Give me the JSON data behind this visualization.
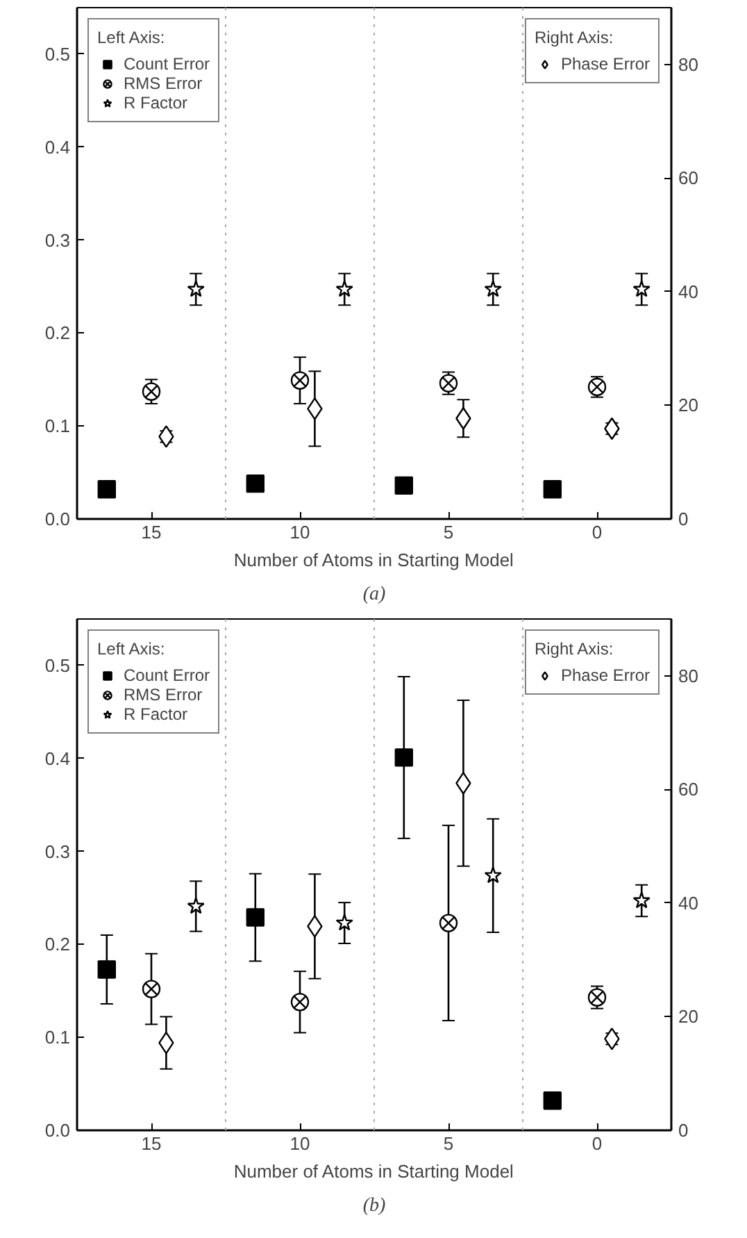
{
  "chart_data": [
    {
      "type": "scatter",
      "title": "(a)",
      "xlabel": "Number of Atoms in Starting Model",
      "xlim": [
        17.5,
        -2.5
      ],
      "xticks": [
        15,
        10,
        5,
        0
      ],
      "ylim": [
        0,
        0.55
      ],
      "yticks": [
        {
          "value": 0,
          "label": "0.0"
        },
        0.1,
        0.2,
        0.3,
        0.4,
        0.5
      ],
      "y2lim": [
        0,
        90
      ],
      "y2ticks": [
        0,
        20,
        40,
        60,
        80
      ],
      "legend": [
        "top left",
        "top right"
      ],
      "legend_title": [
        "Left Axis:",
        "Right Axis:"
      ],
      "grid": false,
      "ref_lines": [
        {
          "axis": "x",
          "value": 12.5,
          "color": "#aaaaaa",
          "line_style": "dotted"
        },
        {
          "axis": "x",
          "value": 7.5,
          "color": "#aaaaaa",
          "line_style": "dotted"
        },
        {
          "axis": "x",
          "value": 2.5,
          "color": "#aaaaaa",
          "line_style": "dotted"
        }
      ],
      "series": [
        {
          "name": "Count Error",
          "color": "#000000",
          "marker": "square",
          "x": [
            16.5,
            11.5,
            6.5,
            1.5
          ],
          "values": [
            0.032,
            0.038,
            0.036,
            0.032
          ],
          "errors": [
            null,
            0.005,
            null,
            null
          ]
        },
        {
          "name": "RMS Error",
          "color": "#000000",
          "marker": "cross",
          "x": [
            15,
            10,
            5,
            0
          ],
          "values": [
            0.137,
            0.149,
            0.146,
            0.142
          ],
          "errors": [
            0.013,
            0.025,
            0.012,
            0.011
          ]
        },
        {
          "name": "R Factor",
          "color": "#000000",
          "marker": "star",
          "x": [
            13.5,
            8.5,
            3.5,
            -1.5
          ],
          "values": [
            0.247,
            0.247,
            0.247,
            0.247
          ],
          "errors": [
            0.017,
            0.017,
            0.017,
            0.017
          ]
        },
        {
          "name": "Phase Error",
          "color": "#000000",
          "marker": "diamond",
          "axis": "y2",
          "x": [
            14.5,
            9.5,
            4.5,
            -0.5
          ],
          "values": [
            14.5,
            19.4,
            17.7,
            15.9
          ],
          "errors": [
            1,
            6.6,
            3.3,
            1
          ]
        }
      ]
    },
    {
      "type": "scatter",
      "title": "(b)",
      "xlabel": "Number of Atoms in Starting Model",
      "xlim": [
        17.5,
        -2.5
      ],
      "xticks": [
        15,
        10,
        5,
        0
      ],
      "ylim": [
        0,
        0.55
      ],
      "yticks": [
        {
          "value": 0,
          "label": "0.0"
        },
        0.1,
        0.2,
        0.3,
        0.4,
        0.5
      ],
      "y2lim": [
        0,
        90
      ],
      "y2ticks": [
        0,
        20,
        40,
        60,
        80
      ],
      "legend": [
        "top left",
        "top right"
      ],
      "legend_title": [
        "Left Axis:",
        "Right Axis:"
      ],
      "grid": false,
      "ref_lines": [
        {
          "axis": "x",
          "value": 12.5,
          "color": "#aaaaaa",
          "line_style": "dotted"
        },
        {
          "axis": "x",
          "value": 7.5,
          "color": "#aaaaaa",
          "line_style": "dotted"
        },
        {
          "axis": "x",
          "value": 2.5,
          "color": "#aaaaaa",
          "line_style": "dotted"
        }
      ],
      "series": [
        {
          "name": "Count Error",
          "color": "#000000",
          "marker": "square",
          "x": [
            16.5,
            11.5,
            6.5,
            1.5
          ],
          "values": [
            0.173,
            0.229,
            0.401,
            0.032
          ],
          "errors": [
            0.037,
            0.047,
            0.087,
            null
          ]
        },
        {
          "name": "RMS Error",
          "color": "#000000",
          "marker": "cross",
          "x": [
            15,
            10,
            5,
            0
          ],
          "values": [
            0.152,
            0.138,
            0.223,
            0.143
          ],
          "errors": [
            0.038,
            0.033,
            0.105,
            0.012
          ]
        },
        {
          "name": "R Factor",
          "color": "#000000",
          "marker": "star",
          "x": [
            13.5,
            8.5,
            3.5,
            -1.5
          ],
          "values": [
            0.241,
            0.223,
            0.274,
            0.247
          ],
          "errors": [
            0.027,
            0.022,
            0.061,
            0.017
          ]
        },
        {
          "name": "Phase Error",
          "color": "#000000",
          "marker": "diamond",
          "axis": "y2",
          "x": [
            14.5,
            9.5,
            4.5,
            -0.5
          ],
          "values": [
            15.4,
            35.9,
            61.1,
            16.1
          ],
          "errors": [
            4.6,
            9.2,
            14.6,
            1
          ]
        }
      ]
    }
  ]
}
